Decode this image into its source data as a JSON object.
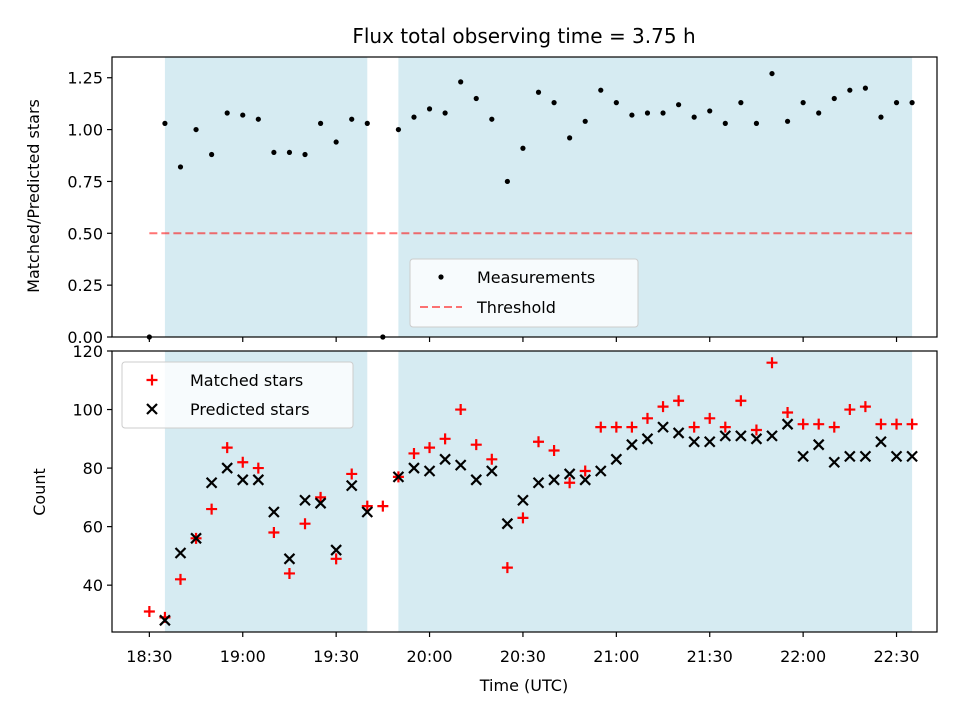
{
  "chart_data": [
    {
      "type": "scatter",
      "title": "Flux total observing time = 3.75 h",
      "xlabel": "",
      "ylabel": "Matched/Predicted stars",
      "ylim": [
        0,
        1.35
      ],
      "yticks": [
        "0.00",
        "0.25",
        "0.50",
        "0.75",
        "1.00",
        "1.25"
      ],
      "shaded_intervals_min": [
        [
          5,
          70
        ],
        [
          80,
          245
        ]
      ],
      "threshold": 0.5,
      "threshold_range_min": [
        0,
        245
      ],
      "series": [
        {
          "name": "Measurements",
          "x_min": [
            0,
            5,
            10,
            15,
            20,
            25,
            30,
            35,
            40,
            45,
            50,
            55,
            60,
            65,
            70,
            75,
            80,
            85,
            90,
            95,
            100,
            105,
            110,
            115,
            120,
            125,
            130,
            135,
            140,
            145,
            150,
            155,
            160,
            165,
            170,
            175,
            180,
            185,
            190,
            195,
            200,
            205,
            210,
            215,
            220,
            225,
            230,
            235,
            240,
            245
          ],
          "values": [
            0.0,
            1.03,
            0.82,
            1.0,
            0.88,
            1.08,
            1.07,
            1.05,
            0.89,
            0.89,
            0.88,
            1.03,
            0.94,
            1.05,
            1.03,
            0.0,
            1.0,
            1.06,
            1.1,
            1.08,
            1.23,
            1.15,
            1.05,
            0.75,
            0.91,
            1.18,
            1.13,
            0.96,
            1.04,
            1.19,
            1.13,
            1.07,
            1.08,
            1.08,
            1.12,
            1.06,
            1.09,
            1.03,
            1.13,
            1.03,
            1.27,
            1.04,
            1.13,
            1.08,
            1.15,
            1.19,
            1.2,
            1.06,
            1.13,
            1.13
          ]
        }
      ],
      "legend": {
        "placement": "bottom-center",
        "entries": [
          "Measurements",
          "Threshold"
        ]
      }
    },
    {
      "type": "scatter",
      "title": "",
      "xlabel": "Time (UTC)",
      "ylabel": "Count",
      "ylim": [
        24,
        120
      ],
      "yticks": [
        "40",
        "60",
        "80",
        "100",
        "120"
      ],
      "xticks": [
        "18:30",
        "19:00",
        "19:30",
        "20:00",
        "20:30",
        "21:00",
        "21:30",
        "22:00",
        "22:30"
      ],
      "xlim_min": [
        -12,
        253
      ],
      "shaded_intervals_min": [
        [
          5,
          70
        ],
        [
          80,
          245
        ]
      ],
      "series": [
        {
          "name": "Matched stars",
          "x_min": [
            0,
            5,
            10,
            15,
            20,
            25,
            30,
            35,
            40,
            45,
            50,
            55,
            60,
            65,
            70,
            75,
            80,
            85,
            90,
            95,
            100,
            105,
            110,
            115,
            120,
            125,
            130,
            135,
            140,
            145,
            150,
            155,
            160,
            165,
            170,
            175,
            180,
            185,
            190,
            195,
            200,
            205,
            210,
            215,
            220,
            225,
            230,
            235,
            240,
            245
          ],
          "values": [
            31,
            29,
            42,
            56,
            66,
            87,
            82,
            80,
            58,
            44,
            61,
            70,
            49,
            78,
            67,
            67,
            77,
            85,
            87,
            90,
            100,
            88,
            83,
            46,
            63,
            89,
            86,
            75,
            79,
            94,
            94,
            94,
            97,
            101,
            103,
            94,
            97,
            94,
            103,
            93,
            116,
            99,
            95,
            95,
            94,
            100,
            101,
            95,
            95,
            95
          ]
        },
        {
          "name": "Predicted stars",
          "x_min": [
            5,
            10,
            15,
            20,
            25,
            30,
            35,
            40,
            45,
            50,
            55,
            60,
            65,
            70,
            80,
            85,
            90,
            95,
            100,
            105,
            110,
            115,
            120,
            125,
            130,
            135,
            140,
            145,
            150,
            155,
            160,
            165,
            170,
            175,
            180,
            185,
            190,
            195,
            200,
            205,
            210,
            215,
            220,
            225,
            230,
            235,
            240,
            245
          ],
          "values": [
            28,
            51,
            56,
            75,
            80,
            76,
            76,
            65,
            49,
            69,
            68,
            52,
            74,
            65,
            77,
            80,
            79,
            83,
            81,
            76,
            79,
            61,
            69,
            75,
            76,
            78,
            76,
            79,
            83,
            88,
            90,
            94,
            92,
            89,
            89,
            91,
            91,
            90,
            91,
            95,
            84,
            88,
            82,
            84,
            84,
            89,
            84,
            84
          ]
        }
      ],
      "legend": {
        "placement": "top-left",
        "entries": [
          "Matched stars",
          "Predicted stars"
        ]
      }
    }
  ]
}
